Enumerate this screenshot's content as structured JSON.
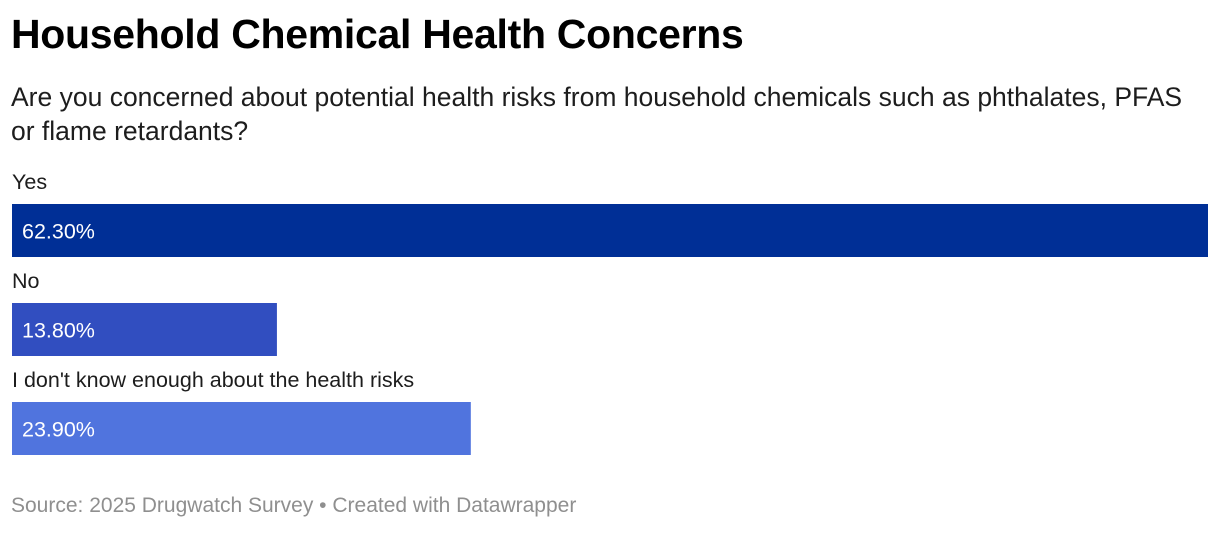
{
  "header": {
    "title": "Household Chemical Health Concerns",
    "subtitle": "Are you concerned about potential health risks from household chemicals such as phthalates, PFAS or flame retardants?"
  },
  "footer": {
    "source": "Source: 2025 Drugwatch Survey",
    "separator": "•",
    "credit": "Created with Datawrapper"
  },
  "chart_data": {
    "type": "bar",
    "orientation": "horizontal",
    "title": "Household Chemical Health Concerns",
    "subtitle": "Are you concerned about potential health risks from household chemicals such as phthalates, PFAS or flame retardants?",
    "categories": [
      "Yes",
      "No",
      "I don't know enough about the health risks"
    ],
    "values": [
      62.3,
      13.8,
      23.9
    ],
    "value_labels": [
      "62.30%",
      "13.80%",
      "23.90%"
    ],
    "colors": [
      "#002f96",
      "#314ec0",
      "#5074de"
    ],
    "xlabel": "",
    "ylabel": "",
    "xlim": [
      0,
      62.3
    ],
    "grid": false,
    "legend": "none"
  }
}
